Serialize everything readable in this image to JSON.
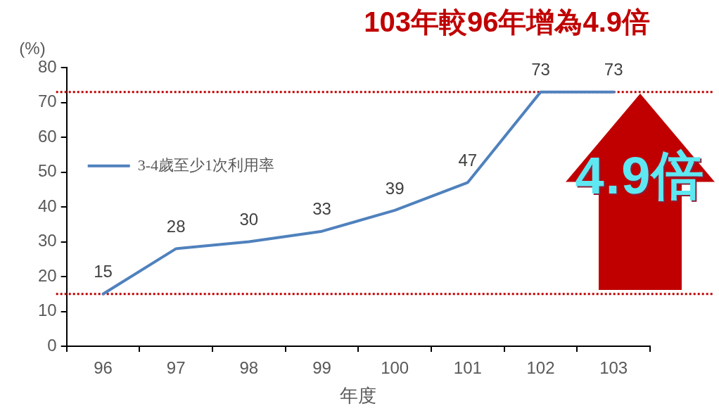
{
  "chart_data": {
    "type": "line",
    "title": "103年較96年增為4.9倍",
    "xlabel": "年度",
    "ylabel": "(%)",
    "categories": [
      "96",
      "97",
      "98",
      "99",
      "100",
      "101",
      "102",
      "103"
    ],
    "series": [
      {
        "name": "3-4歲至少1次利用率",
        "color": "#4f81bd",
        "values": [
          15,
          28,
          30,
          33,
          39,
          47,
          73,
          73
        ]
      }
    ],
    "ylim": [
      0,
      80
    ],
    "yticks": [
      0,
      10,
      20,
      30,
      40,
      50,
      60,
      70,
      80
    ],
    "ref_lines": [
      {
        "axis": "y",
        "value": 73,
        "color": "#c00000",
        "line_style": "dotted"
      },
      {
        "axis": "y",
        "value": 15,
        "color": "#c00000",
        "line_style": "dotted"
      }
    ],
    "annotations": [
      "4.9倍"
    ],
    "data_labels": true,
    "legend": "top left",
    "grid": false,
    "marker": "none",
    "line_style": "solid"
  }
}
